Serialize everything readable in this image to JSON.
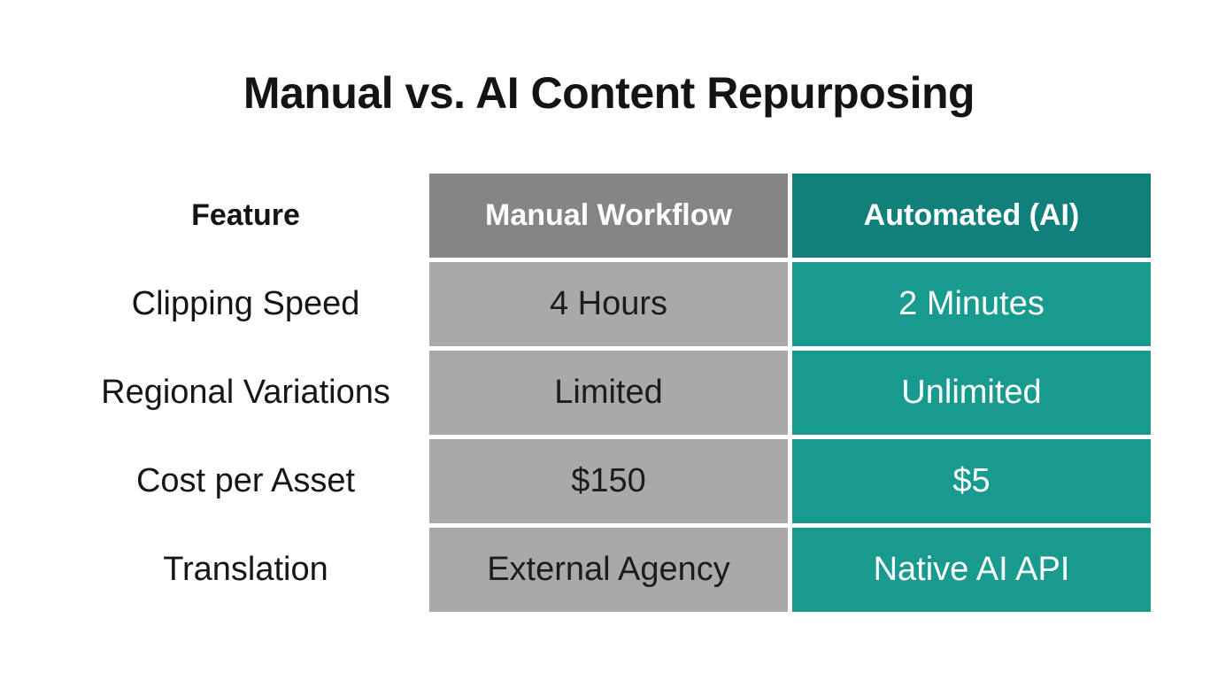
{
  "title": "Manual vs. AI Content Repurposing",
  "colors": {
    "background": "#ffffff",
    "title_text": "#141414",
    "header_gray": "#858585",
    "header_teal": "#12807a",
    "body_gray": "#a9a9a9",
    "body_teal": "#189a8f",
    "light_text": "#ffffff",
    "dark_text": "#1c1c1c"
  },
  "chart_data": {
    "type": "table",
    "title": "Manual vs. AI Content Repurposing",
    "columns": [
      "Feature",
      "Manual Workflow",
      "Automated (AI)"
    ],
    "rows": [
      [
        "Clipping Speed",
        "4 Hours",
        "2 Minutes"
      ],
      [
        "Regional Variations",
        "Limited",
        "Unlimited"
      ],
      [
        "Cost per Asset",
        "$150",
        "$5"
      ],
      [
        "Translation",
        "External Agency",
        "Native AI API"
      ]
    ],
    "layout_hints": {
      "feature_column_background": "none",
      "manual_column_style": "gray",
      "ai_column_style": "teal",
      "cell_gap": "white"
    }
  }
}
